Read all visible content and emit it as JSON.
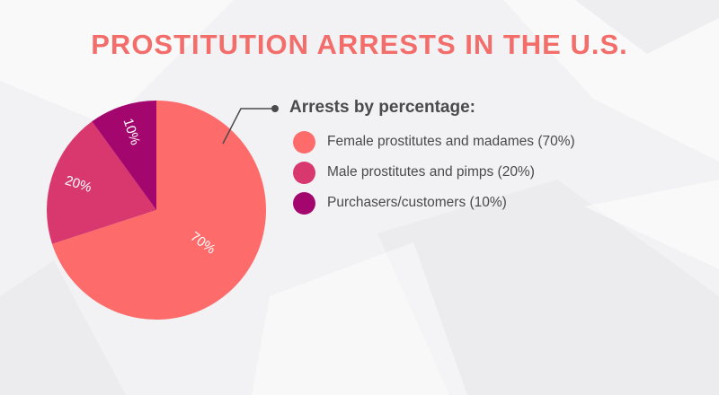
{
  "title": "PROSTITUTION ARRESTS IN THE U.S.",
  "colors": {
    "title": "#f36e6a",
    "slices": [
      "#fe6b6b",
      "#d8386d",
      "#a3076d"
    ],
    "callout": "#4a4a4a"
  },
  "legend": {
    "title": "Arrests by percentage:",
    "items": [
      {
        "label": "Female prostitutes and madames (70%)"
      },
      {
        "label": "Male prostitutes and pimps (20%)"
      },
      {
        "label": "Purchasers/customers (10%)"
      }
    ]
  },
  "chart_data": {
    "type": "pie",
    "title": "PROSTITUTION ARRESTS IN THE U.S.",
    "categories": [
      "Female prostitutes and madames",
      "Male prostitutes and pimps",
      "Purchasers/customers"
    ],
    "values": [
      70,
      20,
      10
    ],
    "data_labels": [
      "70%",
      "20%",
      "10%"
    ],
    "legend_title": "Arrests by percentage:",
    "legend_placement": "right"
  }
}
